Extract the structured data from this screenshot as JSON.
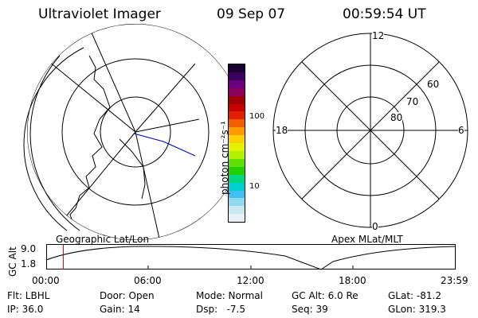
{
  "header": {
    "title": "Ultraviolet Imager",
    "date": "09 Sep 07",
    "time": "00:59:54 UT"
  },
  "colorbar": {
    "unit_label": "photon cm⁻²s⁻¹",
    "ticks": [
      "100",
      "10"
    ],
    "colors": [
      "#1a0030",
      "#3b0060",
      "#6a0080",
      "#8a005a",
      "#a00000",
      "#c80000",
      "#e02000",
      "#f06000",
      "#ff9a00",
      "#ffd000",
      "#e8f000",
      "#b0f000",
      "#60e000",
      "#20d000",
      "#00d880",
      "#00d0d0",
      "#40c0f0",
      "#90d8f0",
      "#c8e8f0",
      "#e6f0f4"
    ]
  },
  "left_map": {
    "label": "Geographic Lat/Lon"
  },
  "right_map": {
    "label": "Apex MLat/MLT",
    "mlt_labels": {
      "top": "12",
      "bottom": "0",
      "left": "18",
      "right": "6"
    },
    "lat_labels": [
      "60",
      "70",
      "80"
    ]
  },
  "timeline": {
    "ylabel": "GC Alt",
    "ymax": "9.0",
    "ymin": "1.8",
    "xticks": [
      "00:00",
      "06:00",
      "12:00",
      "18:00",
      "23:59"
    ],
    "marker_hours": 1.0
  },
  "status": {
    "flt": "Flt: LBHL",
    "ip": "IP: 36.0",
    "door": "Door: Open",
    "gain": "Gain: 14",
    "mode": "Mode: Normal",
    "dsp": "Dsp:   -7.5",
    "gcalt": "GC Alt: 6.0 Re",
    "seq": "Seq: 39",
    "glat": "GLat: -81.2",
    "glon": "GLon: 319.3"
  }
}
